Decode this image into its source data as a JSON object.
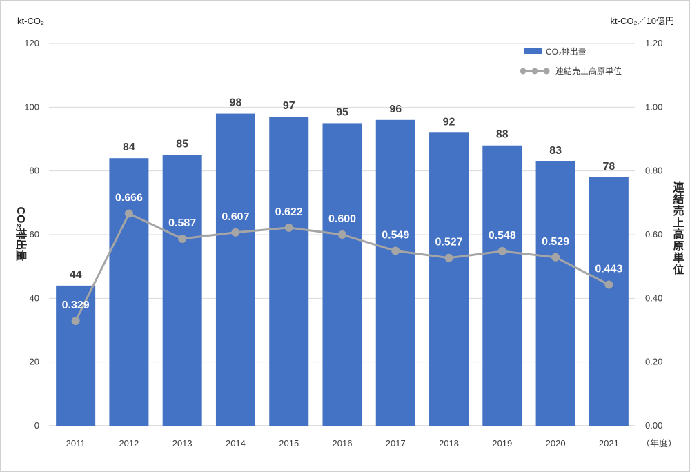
{
  "chart_data": {
    "type": "bar",
    "categories": [
      "2011",
      "2012",
      "2013",
      "2014",
      "2015",
      "2016",
      "2017",
      "2018",
      "2019",
      "2020",
      "2021"
    ],
    "series": [
      {
        "name": "CO₂排出量",
        "type": "bar",
        "axis": "left",
        "color": "#4472C4",
        "values": [
          44,
          84,
          85,
          98,
          97,
          95,
          96,
          92,
          88,
          83,
          78
        ],
        "labels": [
          "44",
          "84",
          "85",
          "98",
          "97",
          "95",
          "96",
          "92",
          "88",
          "83",
          "78"
        ]
      },
      {
        "name": "連結売上高原単位",
        "type": "line",
        "axis": "right",
        "color": "#A5A5A5",
        "values": [
          0.329,
          0.666,
          0.587,
          0.607,
          0.622,
          0.6,
          0.549,
          0.527,
          0.548,
          0.529,
          0.443
        ],
        "labels": [
          "0.329",
          "0.666",
          "0.587",
          "0.607",
          "0.622",
          "0.600",
          "0.549",
          "0.527",
          "0.548",
          "0.529",
          "0.443"
        ]
      }
    ],
    "y_left": {
      "unit": "kt-CO₂",
      "label": "CO₂排出量",
      "range": [
        0,
        120
      ],
      "ticks": [
        "0",
        "20",
        "40",
        "60",
        "80",
        "100",
        "120"
      ]
    },
    "y_right": {
      "unit": "kt-CO₂／10億円",
      "label": "連結売上高原単位",
      "range": [
        0,
        1.2
      ],
      "ticks": [
        "0.00",
        "0.20",
        "0.40",
        "0.60",
        "0.80",
        "1.00",
        "1.20"
      ]
    },
    "x_unit": "（年度）",
    "grid": true,
    "legend_position": "top-right"
  }
}
